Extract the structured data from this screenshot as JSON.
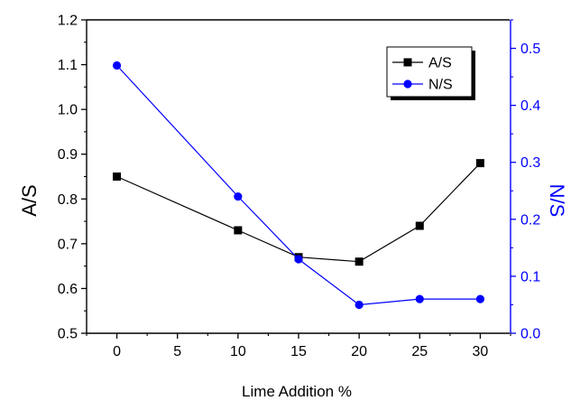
{
  "chart_data": {
    "type": "line",
    "xlabel": "Lime Addition %",
    "ylabel_left": "A/S",
    "ylabel_right": "N/S",
    "x_ticks": [
      0,
      5,
      10,
      15,
      20,
      25,
      30
    ],
    "y_left_ticks": [
      "0.5",
      "0.6",
      "0.7",
      "0.8",
      "0.9",
      "1.0",
      "1.1",
      "1.2"
    ],
    "y_right_ticks": [
      "0.0",
      "0.1",
      "0.2",
      "0.3",
      "0.4",
      "0.5"
    ],
    "xlim": [
      -2.5,
      32.5
    ],
    "ylim_left": [
      0.5,
      1.2
    ],
    "ylim_right": [
      0.0,
      0.55
    ],
    "grid": false,
    "legend_position": "top-right",
    "series": [
      {
        "name": "A/S",
        "axis": "left",
        "marker": "square",
        "color": "#000000",
        "x": [
          0,
          10,
          15,
          20,
          25,
          30
        ],
        "y": [
          0.85,
          0.73,
          0.67,
          0.66,
          0.74,
          0.88
        ]
      },
      {
        "name": "N/S",
        "axis": "right",
        "marker": "circle",
        "color": "#0000ff",
        "x": [
          0,
          10,
          15,
          20,
          25,
          30
        ],
        "y": [
          0.47,
          0.24,
          0.13,
          0.05,
          0.06,
          0.06
        ]
      }
    ]
  }
}
